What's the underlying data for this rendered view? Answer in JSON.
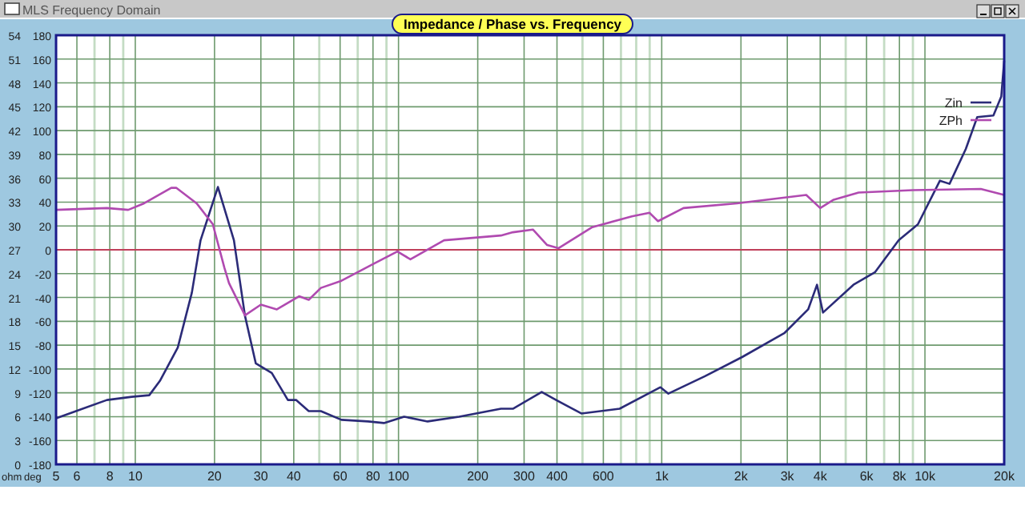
{
  "chart_data": {
    "type": "line",
    "title": "Impedance / Phase vs. Frequency",
    "annotations": [
      "MLS Frequency Domain"
    ],
    "ylabel": "ohm",
    "y2label": "deg",
    "log": "x",
    "grid": true,
    "legend": "top right",
    "marker": "none",
    "line_style": "solid",
    "xlim": [
      5,
      20000
    ],
    "xticks": [
      5,
      6,
      {
        "value": 7,
        "label": null
      },
      8,
      {
        "value": 9,
        "label": null
      },
      10,
      20,
      30,
      40,
      {
        "value": 50,
        "label": null
      },
      60,
      {
        "value": 70,
        "label": null
      },
      80,
      {
        "value": 90,
        "label": null
      },
      100,
      200,
      300,
      400,
      {
        "value": 500,
        "label": null
      },
      600,
      {
        "value": 700,
        "label": null
      },
      {
        "value": 800,
        "label": null
      },
      {
        "value": 900,
        "label": null
      },
      {
        "value": 1000,
        "label": "1k"
      },
      {
        "value": 2000,
        "label": "2k"
      },
      {
        "value": 3000,
        "label": "3k"
      },
      {
        "value": 4000,
        "label": "4k"
      },
      {
        "value": 5000,
        "label": null
      },
      {
        "value": 6000,
        "label": "6k"
      },
      {
        "value": 7000,
        "label": null
      },
      {
        "value": 8000,
        "label": "8k"
      },
      {
        "value": 9000,
        "label": null
      },
      {
        "value": 10000,
        "label": "10k"
      },
      {
        "value": 20000,
        "label": "20k"
      }
    ],
    "ylim": [
      0,
      54
    ],
    "yticks": [
      0,
      3,
      6,
      9,
      12,
      15,
      18,
      21,
      24,
      27,
      30,
      33,
      36,
      39,
      42,
      45,
      48,
      51,
      54
    ],
    "y2lim": [
      -180,
      180
    ],
    "y2ticks": [
      -180,
      -160,
      -140,
      -120,
      -100,
      -80,
      -60,
      -40,
      -20,
      0,
      20,
      40,
      60,
      80,
      100,
      120,
      140,
      160,
      180
    ],
    "ref_lines": [
      {
        "axis": "y2",
        "value": 0,
        "color": "#c0405a"
      }
    ],
    "series": [
      {
        "name": "Zin",
        "color": "#2b2b78",
        "x": [
          5,
          7.8,
          9.7,
          11.3,
          12.4,
          14.5,
          16.4,
          17.7,
          20.6,
          23.7,
          26.1,
          28.7,
          33,
          38,
          40.8,
          45.6,
          50.7,
          60.7,
          76.6,
          88,
          105,
          129,
          170,
          245,
          272,
          350,
          397,
          495,
          692,
          989,
          1060,
          1460,
          2020,
          2920,
          3600,
          3890,
          4100,
          5350,
          6470,
          7950,
          9400,
          11400,
          12400,
          14300,
          15800,
          18200,
          19500,
          20000
        ],
        "values": [
          5.8,
          8.1,
          8.5,
          8.7,
          10.5,
          14.7,
          21.6,
          28.2,
          34.9,
          28.2,
          18.7,
          12.7,
          11.5,
          8.1,
          8.1,
          6.7,
          6.7,
          5.6,
          5.4,
          5.2,
          6.0,
          5.4,
          6.0,
          7.0,
          7.0,
          9.1,
          8.1,
          6.4,
          7.0,
          9.7,
          8.9,
          11.1,
          13.5,
          16.5,
          19.5,
          22.6,
          19.1,
          22.6,
          24.2,
          28.2,
          30.2,
          35.7,
          35.3,
          39.7,
          43.7,
          43.9,
          46.3,
          50.8
        ]
      },
      {
        "name": "ZPh",
        "color": "#b04ab0",
        "axis": "y2",
        "x": [
          5,
          7.8,
          9.4,
          10.8,
          13.7,
          14.3,
          17.1,
          19.7,
          21.8,
          22.7,
          26.1,
          30,
          34.5,
          41.9,
          45.6,
          50.7,
          60.7,
          80,
          99,
          111,
          149,
          245,
          272,
          324,
          367,
          405,
          545,
          770,
          899,
          968,
          1210,
          1930,
          3540,
          4000,
          4500,
          5600,
          9000,
          16300,
          20000
        ],
        "values": [
          33.5,
          35,
          33.5,
          39,
          52,
          52,
          39,
          21.5,
          -15,
          -28,
          -55,
          -46,
          -50,
          -39,
          -42,
          -32,
          -26,
          -12,
          -1.4,
          -8,
          8,
          12,
          14.7,
          17,
          4,
          1.3,
          19,
          28,
          31,
          24,
          35,
          39,
          46,
          35,
          42,
          48,
          50,
          51,
          46
        ]
      }
    ]
  }
}
